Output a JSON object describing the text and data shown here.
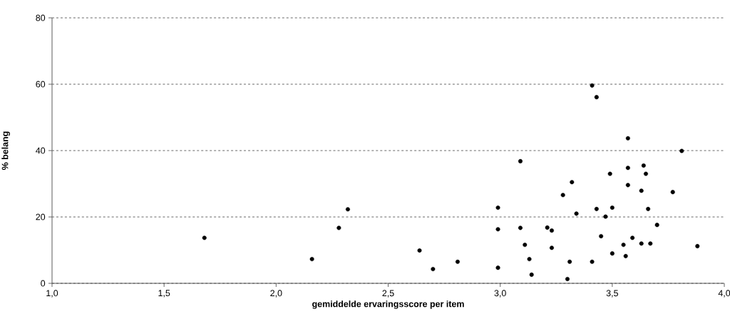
{
  "chart_data": {
    "type": "scatter",
    "xlabel": "gemiddelde ervaringsscore per item",
    "ylabel": "% belang",
    "x": [
      2.64,
      2.7,
      2.81,
      2.99,
      2.99,
      2.99,
      3.09,
      3.09,
      3.11,
      3.13,
      3.14,
      3.21,
      3.23,
      3.23,
      3.28,
      3.3,
      3.31,
      3.32,
      3.34,
      3.41,
      3.43,
      3.45,
      3.47,
      3.49,
      3.5,
      3.5,
      3.55,
      3.56,
      3.57,
      3.57,
      3.59,
      3.63,
      3.63,
      3.64,
      3.65,
      3.66,
      3.67,
      3.7,
      3.77,
      3.81,
      3.88,
      3.41,
      3.43,
      3.57,
      1.68,
      2.16,
      2.28,
      2.32
    ],
    "values": [
      9.9,
      4.3,
      6.5,
      22.8,
      16.3,
      4.7,
      36.8,
      16.7,
      11.6,
      7.3,
      2.6,
      16.8,
      15.9,
      10.7,
      26.6,
      1.3,
      6.5,
      30.5,
      21.0,
      6.5,
      22.4,
      14.2,
      20.1,
      33.0,
      22.8,
      9.0,
      11.6,
      8.2,
      34.8,
      29.6,
      13.7,
      27.9,
      12.0,
      35.5,
      33.0,
      22.4,
      12.0,
      17.6,
      27.5,
      39.9,
      11.2,
      59.6,
      56.1,
      43.7,
      13.7,
      7.3,
      16.7,
      22.3
    ],
    "color": "#000000",
    "marker": "circle",
    "xlim": [
      1.0,
      4.0
    ],
    "ylim": [
      0,
      80
    ],
    "xticks": [
      {
        "value": 1.0,
        "label": "1,0"
      },
      {
        "value": 1.5,
        "label": "1,5"
      },
      {
        "value": 2.0,
        "label": "2,0"
      },
      {
        "value": 2.5,
        "label": "2,5"
      },
      {
        "value": 3.0,
        "label": "3,0"
      },
      {
        "value": 3.5,
        "label": "3,5"
      },
      {
        "value": 4.0,
        "label": "4,0"
      }
    ],
    "yticks": [
      0,
      20,
      40,
      60,
      80
    ],
    "grid": "y"
  }
}
